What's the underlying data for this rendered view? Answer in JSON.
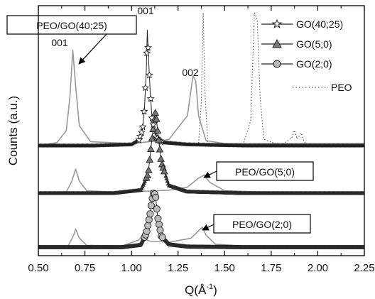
{
  "chart_data": {
    "type": "line",
    "xlabel": "Q(Å⁻¹)",
    "xlabel_parts": {
      "main": "Q(Å",
      "sup": "-1",
      "close": ")"
    },
    "ylabel": "Counts (a.u.)",
    "xlim": [
      0.5,
      2.25
    ],
    "x_ticks": [
      "0.50",
      "0.75",
      "1.00",
      "1.25",
      "1.50",
      "1.75",
      "2.00",
      "2.25"
    ],
    "x_tick_values": [
      0.5,
      0.75,
      1.0,
      1.25,
      1.5,
      1.75,
      2.0,
      2.25
    ],
    "y_ticks": "none",
    "legend": {
      "placement": "top-right",
      "entries": [
        {
          "label": "GO(40;25)",
          "marker": "open-star"
        },
        {
          "label": "GO(5;0)",
          "marker": "filled-triangle"
        },
        {
          "label": "GO(2;0)",
          "marker": "filled-circle"
        },
        {
          "label": "PEO",
          "marker": "dotted-line"
        }
      ]
    },
    "annotations": {
      "boxed": [
        "PEO/GO(40;25)",
        "PEO/GO(5;0)",
        "PEO/GO(2;0)"
      ],
      "peak_labels": [
        "001",
        "001",
        "002"
      ]
    },
    "series": [
      {
        "name": "PEO/GO(40;25)",
        "x": [
          0.5,
          0.6,
          0.65,
          0.67,
          0.685,
          0.7,
          0.72,
          0.78,
          1.0,
          1.2,
          1.3,
          1.33,
          1.345,
          1.36,
          1.4,
          1.5,
          1.7,
          1.9,
          2.25
        ],
        "y": [
          0.0,
          0.03,
          0.15,
          0.5,
          0.96,
          0.6,
          0.2,
          0.04,
          0.02,
          0.06,
          0.3,
          0.7,
          0.65,
          0.3,
          0.05,
          0.02,
          0.02,
          0.02,
          0.02
        ]
      },
      {
        "name": "GO(40;25)",
        "x": [
          0.5,
          0.8,
          1.0,
          1.04,
          1.06,
          1.07,
          1.08,
          1.085,
          1.09,
          1.1,
          1.11,
          1.13,
          1.16,
          1.3,
          1.6,
          2.25
        ],
        "y": [
          0.0,
          0.0,
          0.01,
          0.05,
          0.15,
          0.35,
          0.7,
          1.05,
          0.85,
          0.5,
          0.25,
          0.08,
          0.03,
          0.01,
          0.0,
          0.0
        ]
      },
      {
        "name": "PEO",
        "x": [
          1.3,
          1.36,
          1.375,
          1.385,
          1.395,
          1.41,
          1.5,
          1.6,
          1.64,
          1.66,
          1.675,
          1.69,
          1.71,
          1.8,
          1.86,
          1.875,
          1.89,
          1.91,
          1.925,
          1.94,
          2.0,
          2.25
        ],
        "y": [
          0.0,
          0.02,
          0.35,
          1.05,
          0.4,
          0.02,
          0.0,
          0.01,
          0.2,
          1.05,
          1.0,
          0.4,
          0.05,
          0.0,
          0.06,
          0.12,
          0.05,
          0.1,
          0.04,
          0.0,
          0.0,
          0.0
        ]
      },
      {
        "name": "PEO/GO(5;0)",
        "x": [
          0.5,
          0.65,
          0.68,
          0.7,
          0.72,
          0.76,
          0.9,
          1.05,
          1.2,
          1.3,
          1.36,
          1.39,
          1.42,
          1.5,
          1.7,
          2.25
        ],
        "y": [
          0.0,
          0.02,
          0.2,
          0.4,
          0.2,
          0.04,
          0.02,
          0.03,
          0.05,
          0.1,
          0.25,
          0.3,
          0.18,
          0.04,
          0.02,
          0.0
        ]
      },
      {
        "name": "GO(5;0)",
        "x": [
          0.5,
          0.9,
          1.05,
          1.09,
          1.11,
          1.125,
          1.13,
          1.14,
          1.16,
          1.2,
          1.3,
          1.6,
          2.25
        ],
        "y": [
          0.0,
          0.0,
          0.04,
          0.25,
          0.7,
          1.0,
          1.05,
          0.8,
          0.4,
          0.1,
          0.02,
          0.0,
          0.0
        ]
      },
      {
        "name": "PEO/GO(2;0)",
        "x": [
          0.5,
          0.66,
          0.69,
          0.7,
          0.72,
          0.76,
          0.95,
          1.04,
          1.06,
          1.08,
          1.1,
          1.2,
          1.32,
          1.37,
          1.38,
          1.4,
          1.45,
          1.6,
          2.25
        ],
        "y": [
          0.0,
          0.02,
          0.2,
          0.3,
          0.15,
          0.03,
          0.02,
          0.12,
          0.2,
          0.12,
          0.1,
          0.08,
          0.15,
          0.3,
          0.33,
          0.2,
          0.05,
          0.02,
          0.0
        ]
      },
      {
        "name": "GO(2;0)",
        "x": [
          0.5,
          0.95,
          1.05,
          1.08,
          1.1,
          1.11,
          1.12,
          1.13,
          1.14,
          1.16,
          1.2,
          1.3,
          1.6,
          2.25
        ],
        "y": [
          0.0,
          0.0,
          0.04,
          0.25,
          0.6,
          0.85,
          1.0,
          0.9,
          0.55,
          0.2,
          0.05,
          0.01,
          0.0,
          0.0
        ]
      }
    ]
  },
  "colors": {
    "go_series": "#222222",
    "peo_go_series": "#999999",
    "peo": "#555555",
    "axis": "#000000",
    "triangle_fill": "#777777",
    "circle_fill": "#bbbbbb"
  }
}
